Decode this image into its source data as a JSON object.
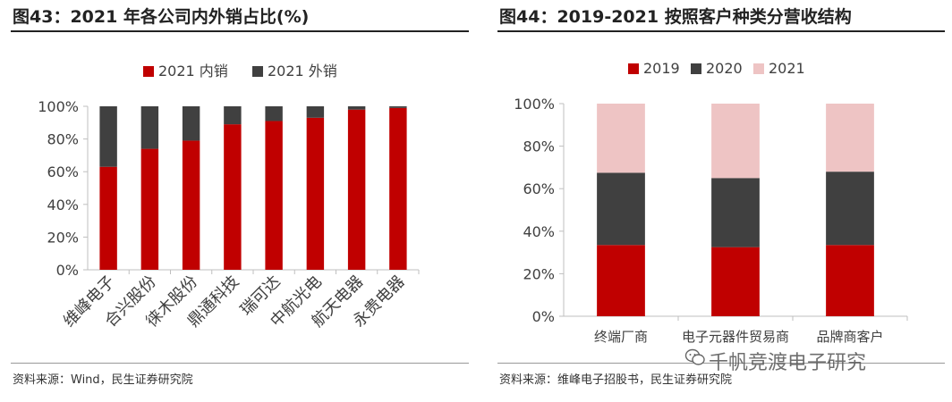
{
  "colors": {
    "red": "#c00000",
    "dark_gray": "#404040",
    "pink": "#eec4c4",
    "axis": "#bfbfbf"
  },
  "watermark": {
    "text": "千帆竞渡电子研究",
    "icon": "wechat-icon"
  },
  "chart_data": [
    {
      "type": "bar",
      "stacked": true,
      "title": "图43：2021 年各公司内外销占比(%)",
      "source": "资料来源：Wind，民生证券研究院",
      "categories": [
        "维峰电子",
        "合兴股份",
        "徕木股份",
        "鼎通科技",
        "瑞可达",
        "中航光电",
        "航天电器",
        "永贵电器"
      ],
      "series": [
        {
          "name": "2021 内销",
          "values": [
            63,
            74,
            79,
            89,
            91,
            93,
            98,
            99
          ]
        },
        {
          "name": "2021 外销",
          "values": [
            37,
            26,
            21,
            11,
            9,
            7,
            2,
            1
          ]
        }
      ],
      "ylim": [
        0,
        100
      ],
      "yticks": [
        "0%",
        "20%",
        "40%",
        "60%",
        "80%",
        "100%"
      ],
      "legend_position": "top"
    },
    {
      "type": "bar",
      "stacked": true,
      "title": "图44：2019-2021 按照客户种类分营收结构",
      "source": "资料来源：维峰电子招股书，民生证券研究院",
      "categories": [
        "终端厂商",
        "电子元器件贸易商",
        "品牌商客户"
      ],
      "series": [
        {
          "name": "2019",
          "values": [
            33.5,
            32.5,
            33.5
          ]
        },
        {
          "name": "2020",
          "values": [
            34,
            32.5,
            34.5
          ]
        },
        {
          "name": "2021",
          "values": [
            32.5,
            35,
            32
          ]
        }
      ],
      "ylim": [
        0,
        100
      ],
      "yticks": [
        "0%",
        "20%",
        "40%",
        "60%",
        "80%",
        "100%"
      ],
      "legend_position": "top"
    }
  ]
}
